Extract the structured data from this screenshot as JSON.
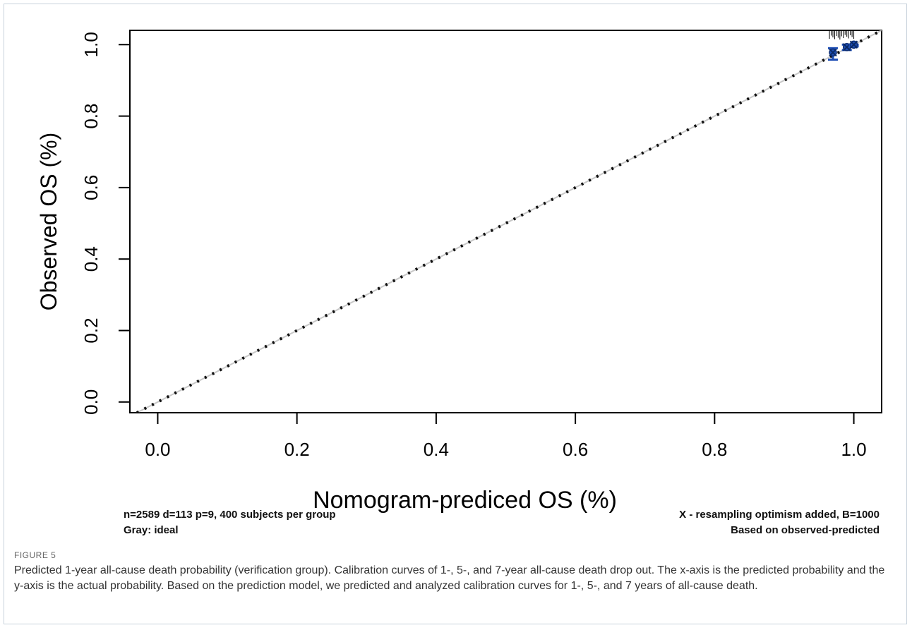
{
  "chart_data": {
    "type": "line",
    "xlabel": "Nomogram-prediced OS (%)",
    "ylabel": "Observed OS (%)",
    "xlim": [
      -0.04,
      1.04
    ],
    "ylim": [
      -0.03,
      1.04
    ],
    "x_ticks": [
      "0.0",
      "0.2",
      "0.4",
      "0.6",
      "0.8",
      "1.0"
    ],
    "y_ticks": [
      "0.0",
      "0.2",
      "0.4",
      "0.6",
      "0.8",
      "1.0"
    ],
    "grid": false,
    "series": [
      {
        "style": "dotted-black",
        "points": [
          [
            -0.03,
            -0.03
          ],
          [
            1.04,
            1.04
          ]
        ]
      },
      {
        "style": "blue-points-with-error-bars",
        "points": [
          [
            0.97,
            0.978
          ],
          [
            0.99,
            0.993
          ],
          [
            1.0,
            1.0
          ]
        ],
        "errors": [
          [
            0.958,
            0.99
          ],
          [
            0.985,
            1.0
          ],
          [
            0.995,
            1.0
          ]
        ]
      }
    ],
    "annotations": {
      "top_left_1": "n=2589 d=113 p=9, 400 subjects per group",
      "top_left_2": "Gray: ideal",
      "top_right_1": "X - resampling optimism added, B=1000",
      "top_right_2": "Based on observed-predicted"
    }
  },
  "figure": {
    "label": "FIGURE 5",
    "caption": "Predicted 1-year all-cause death probability (verification group). Calibration curves of 1-, 5-, and 7-year all-cause death drop out. The x-axis is the predicted probability and the y-axis is the actual probability. Based on the prediction model, we predicted and analyzed calibration curves for 1-, 5-, and 7 years of all-cause death."
  }
}
